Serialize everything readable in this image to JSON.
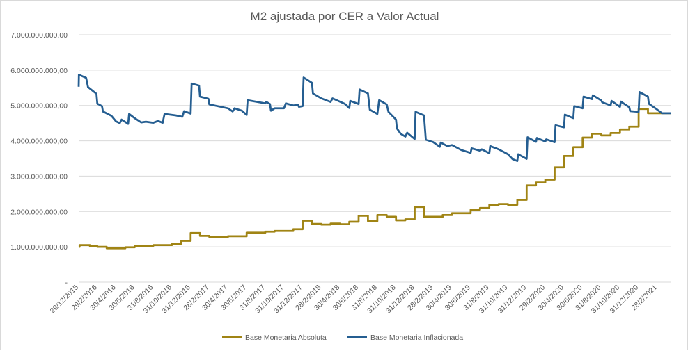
{
  "chart_data": {
    "type": "line",
    "title": "M2 ajustada por CER a Valor Actual",
    "xlabel": "",
    "ylabel": "",
    "ylim": [
      0,
      7000000000
    ],
    "y_ticks": [
      "-",
      "1.000.000.000,00",
      "2.000.000.000,00",
      "3.000.000.000,00",
      "4.000.000.000,00",
      "5.000.000.000,00",
      "6.000.000.000,00",
      "7.000.000.000,00"
    ],
    "y_tick_values": [
      0,
      1000000000,
      2000000000,
      3000000000,
      4000000000,
      5000000000,
      6000000000,
      7000000000
    ],
    "x_ticks": [
      "29/12/2015",
      "29/2/2016",
      "30/4/2016",
      "30/6/2016",
      "31/8/2016",
      "31/10/2016",
      "31/12/2016",
      "28/2/2017",
      "30/4/2017",
      "30/6/2017",
      "31/8/2017",
      "31/10/2017",
      "31/12/2017",
      "28/2/2018",
      "30/4/2018",
      "30/6/2018",
      "31/8/2018",
      "31/10/2018",
      "31/12/2018",
      "28/2/2019",
      "30/4/2019",
      "30/6/2019",
      "31/8/2019",
      "31/10/2019",
      "31/12/2019",
      "29/2/2020",
      "30/4/2020",
      "30/6/2020",
      "31/8/2020",
      "31/10/2020",
      "31/12/2020",
      "28/2/2021"
    ],
    "x_range_months": [
      0,
      63.5
    ],
    "legend_position": "bottom",
    "grid": true,
    "series": [
      {
        "name": "Base Monetaria Absoluta",
        "color": "#a08414",
        "step": true,
        "points": [
          [
            0,
            1000000000
          ],
          [
            0.1,
            1050000000
          ],
          [
            1.2,
            1020000000
          ],
          [
            2,
            1000000000
          ],
          [
            3,
            960000000
          ],
          [
            5,
            990000000
          ],
          [
            6,
            1030000000
          ],
          [
            8,
            1050000000
          ],
          [
            10,
            1090000000
          ],
          [
            11,
            1170000000
          ],
          [
            12,
            1390000000
          ],
          [
            13,
            1310000000
          ],
          [
            14,
            1280000000
          ],
          [
            16,
            1300000000
          ],
          [
            18,
            1400000000
          ],
          [
            20,
            1430000000
          ],
          [
            21,
            1450000000
          ],
          [
            23,
            1500000000
          ],
          [
            24,
            1740000000
          ],
          [
            25,
            1650000000
          ],
          [
            26,
            1630000000
          ],
          [
            27,
            1660000000
          ],
          [
            28,
            1640000000
          ],
          [
            29,
            1710000000
          ],
          [
            30,
            1880000000
          ],
          [
            31,
            1730000000
          ],
          [
            32,
            1900000000
          ],
          [
            33,
            1850000000
          ],
          [
            34,
            1750000000
          ],
          [
            35,
            1780000000
          ],
          [
            36,
            2130000000
          ],
          [
            37,
            1850000000
          ],
          [
            39,
            1900000000
          ],
          [
            40,
            1950000000
          ],
          [
            42,
            2050000000
          ],
          [
            43,
            2100000000
          ],
          [
            44,
            2190000000
          ],
          [
            45,
            2210000000
          ],
          [
            46,
            2190000000
          ],
          [
            47,
            2330000000
          ],
          [
            48,
            2740000000
          ],
          [
            49,
            2820000000
          ],
          [
            50,
            2900000000
          ],
          [
            51,
            3250000000
          ],
          [
            52,
            3570000000
          ],
          [
            53,
            3820000000
          ],
          [
            54,
            4090000000
          ],
          [
            55,
            4200000000
          ],
          [
            56,
            4150000000
          ],
          [
            57,
            4220000000
          ],
          [
            58,
            4320000000
          ],
          [
            59,
            4400000000
          ],
          [
            60,
            4900000000
          ],
          [
            61,
            4780000000
          ],
          [
            63.5,
            4780000000
          ]
        ]
      },
      {
        "name": "Base Monetaria Inflacionada",
        "color": "#255e91",
        "step": false,
        "points": [
          [
            0,
            5530000000
          ],
          [
            0.02,
            5870000000
          ],
          [
            0.8,
            5780000000
          ],
          [
            1,
            5520000000
          ],
          [
            1.9,
            5330000000
          ],
          [
            2,
            5050000000
          ],
          [
            2.5,
            4980000000
          ],
          [
            2.6,
            4830000000
          ],
          [
            3.5,
            4710000000
          ],
          [
            4,
            4550000000
          ],
          [
            4.4,
            4500000000
          ],
          [
            4.6,
            4600000000
          ],
          [
            5.3,
            4480000000
          ],
          [
            5.4,
            4760000000
          ],
          [
            6,
            4640000000
          ],
          [
            6.7,
            4520000000
          ],
          [
            7.2,
            4540000000
          ],
          [
            8,
            4510000000
          ],
          [
            8.5,
            4560000000
          ],
          [
            9,
            4510000000
          ],
          [
            9.2,
            4760000000
          ],
          [
            10.4,
            4720000000
          ],
          [
            11.1,
            4680000000
          ],
          [
            11.3,
            4840000000
          ],
          [
            12,
            4770000000
          ],
          [
            12.1,
            5620000000
          ],
          [
            12.9,
            5560000000
          ],
          [
            13,
            5250000000
          ],
          [
            13.9,
            5190000000
          ],
          [
            14,
            5030000000
          ],
          [
            16,
            4920000000
          ],
          [
            16.5,
            4830000000
          ],
          [
            16.7,
            4920000000
          ],
          [
            17.5,
            4850000000
          ],
          [
            18,
            4730000000
          ],
          [
            18.1,
            5150000000
          ],
          [
            20,
            5060000000
          ],
          [
            20.1,
            5100000000
          ],
          [
            20.5,
            5040000000
          ],
          [
            20.6,
            4850000000
          ],
          [
            21,
            4920000000
          ],
          [
            22,
            4920000000
          ],
          [
            22.2,
            5060000000
          ],
          [
            23,
            5000000000
          ],
          [
            23.5,
            5020000000
          ],
          [
            23.6,
            4960000000
          ],
          [
            24,
            4980000000
          ],
          [
            24.1,
            5790000000
          ],
          [
            25,
            5640000000
          ],
          [
            25.1,
            5340000000
          ],
          [
            26,
            5200000000
          ],
          [
            27,
            5100000000
          ],
          [
            27.2,
            5200000000
          ],
          [
            28.5,
            5050000000
          ],
          [
            29,
            4930000000
          ],
          [
            29.1,
            5130000000
          ],
          [
            30,
            5040000000
          ],
          [
            30.1,
            5450000000
          ],
          [
            31,
            5340000000
          ],
          [
            31.2,
            4880000000
          ],
          [
            32,
            4760000000
          ],
          [
            32.2,
            5150000000
          ],
          [
            33,
            5030000000
          ],
          [
            33.2,
            4820000000
          ],
          [
            34,
            4600000000
          ],
          [
            34.1,
            4350000000
          ],
          [
            34.5,
            4200000000
          ],
          [
            35,
            4120000000
          ],
          [
            35.2,
            4230000000
          ],
          [
            36,
            4050000000
          ],
          [
            36.1,
            4820000000
          ],
          [
            37,
            4720000000
          ],
          [
            37.2,
            4030000000
          ],
          [
            38,
            3960000000
          ],
          [
            38.7,
            3830000000
          ],
          [
            38.8,
            3950000000
          ],
          [
            39.5,
            3850000000
          ],
          [
            40,
            3880000000
          ],
          [
            41,
            3740000000
          ],
          [
            42,
            3660000000
          ],
          [
            42.1,
            3790000000
          ],
          [
            43,
            3720000000
          ],
          [
            43.2,
            3760000000
          ],
          [
            44,
            3650000000
          ],
          [
            44.1,
            3850000000
          ],
          [
            45,
            3760000000
          ],
          [
            46,
            3620000000
          ],
          [
            46.5,
            3480000000
          ],
          [
            47,
            3430000000
          ],
          [
            47.1,
            3620000000
          ],
          [
            48,
            3490000000
          ],
          [
            48.1,
            4100000000
          ],
          [
            49,
            3970000000
          ],
          [
            49.1,
            4080000000
          ],
          [
            50,
            3980000000
          ],
          [
            50.1,
            4040000000
          ],
          [
            51,
            3960000000
          ],
          [
            51.1,
            4440000000
          ],
          [
            52,
            4380000000
          ],
          [
            52.1,
            4740000000
          ],
          [
            53,
            4640000000
          ],
          [
            53.1,
            4980000000
          ],
          [
            54,
            4920000000
          ],
          [
            54.1,
            5250000000
          ],
          [
            55,
            5180000000
          ],
          [
            55.1,
            5290000000
          ],
          [
            56,
            5140000000
          ],
          [
            56.1,
            5090000000
          ],
          [
            57,
            5000000000
          ],
          [
            57.1,
            5130000000
          ],
          [
            58,
            4960000000
          ],
          [
            58.1,
            5110000000
          ],
          [
            59,
            4950000000
          ],
          [
            59.1,
            4840000000
          ],
          [
            60,
            4820000000
          ],
          [
            60.1,
            5380000000
          ],
          [
            61,
            5250000000
          ],
          [
            61.1,
            5050000000
          ],
          [
            62,
            4880000000
          ],
          [
            62.5,
            4780000000
          ],
          [
            63.5,
            4780000000
          ]
        ]
      }
    ]
  }
}
